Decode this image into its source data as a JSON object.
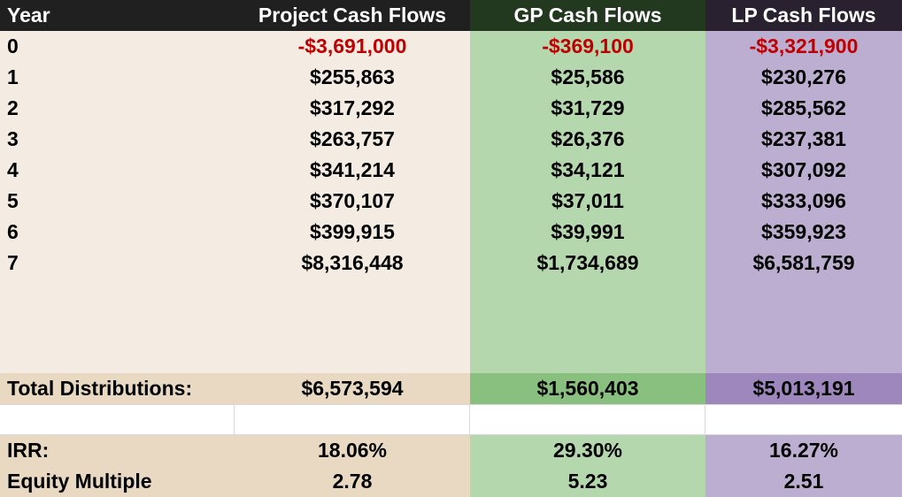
{
  "headers": {
    "year": "Year",
    "project": "Project Cash Flows",
    "gp": "GP Cash Flows",
    "lp": "LP Cash Flows"
  },
  "rows": [
    {
      "year": "0",
      "project": "-$3,691,000",
      "gp": "-$369,100",
      "lp": "-$3,321,900"
    },
    {
      "year": "1",
      "project": "$255,863",
      "gp": "$25,586",
      "lp": "$230,276"
    },
    {
      "year": "2",
      "project": "$317,292",
      "gp": "$31,729",
      "lp": "$285,562"
    },
    {
      "year": "3",
      "project": "$263,757",
      "gp": "$26,376",
      "lp": "$237,381"
    },
    {
      "year": "4",
      "project": "$341,214",
      "gp": "$34,121",
      "lp": "$307,092"
    },
    {
      "year": "5",
      "project": "$370,107",
      "gp": "$37,011",
      "lp": "$333,096"
    },
    {
      "year": "6",
      "project": "$399,915",
      "gp": "$39,991",
      "lp": "$359,923"
    },
    {
      "year": "7",
      "project": "$8,316,448",
      "gp": "$1,734,689",
      "lp": "$6,581,759"
    }
  ],
  "totals": {
    "label": "Total Distributions:",
    "project": "$6,573,594",
    "gp": "$1,560,403",
    "lp": "$5,013,191"
  },
  "irr": {
    "label": "IRR:",
    "project": "18.06%",
    "gp": "29.30%",
    "lp": "16.27%"
  },
  "equity_multiple": {
    "label": "Equity Multiple",
    "project": "2.78",
    "gp": "5.23",
    "lp": "2.51"
  },
  "colors": {
    "negative": "#c00000",
    "gp": "#b4d7ad",
    "lp": "#bcaed0",
    "project": "#f4ece3"
  }
}
